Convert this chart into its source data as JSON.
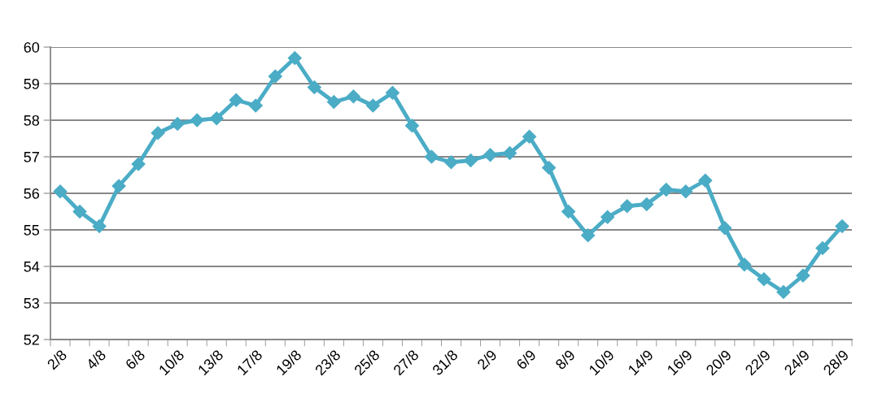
{
  "chart_data": {
    "type": "line",
    "categories": [
      "2/8",
      null,
      "4/8",
      null,
      "6/8",
      null,
      "10/8",
      null,
      "13/8",
      null,
      "17/8",
      null,
      "19/8",
      null,
      "23/8",
      null,
      "25/8",
      null,
      "27/8",
      null,
      "31/8",
      null,
      "2/9",
      null,
      "6/9",
      null,
      "8/9",
      null,
      "10/9",
      null,
      "14/9",
      null,
      "16/9",
      null,
      "20/9",
      null,
      "22/9",
      null,
      "24/9",
      null,
      "28/9"
    ],
    "series": [
      {
        "color": "#4bacc6",
        "values": [
          56.05,
          55.5,
          55.1,
          56.2,
          56.8,
          57.65,
          57.9,
          58.0,
          58.05,
          58.55,
          58.4,
          59.2,
          59.7,
          58.9,
          58.5,
          58.65,
          58.4,
          58.75,
          57.85,
          57.0,
          56.85,
          56.9,
          57.05,
          57.1,
          57.55,
          56.7,
          55.5,
          54.85,
          55.35,
          55.65,
          55.7,
          56.1,
          56.05,
          56.35,
          55.05,
          54.05,
          53.65,
          53.3,
          53.75,
          54.5,
          55.1
        ]
      }
    ],
    "ylim": [
      52,
      60
    ],
    "yticks": [
      52,
      53,
      54,
      55,
      56,
      57,
      58,
      59,
      60
    ],
    "grid": "y",
    "marker": "diamond",
    "line_style": "solid",
    "legend": false
  }
}
